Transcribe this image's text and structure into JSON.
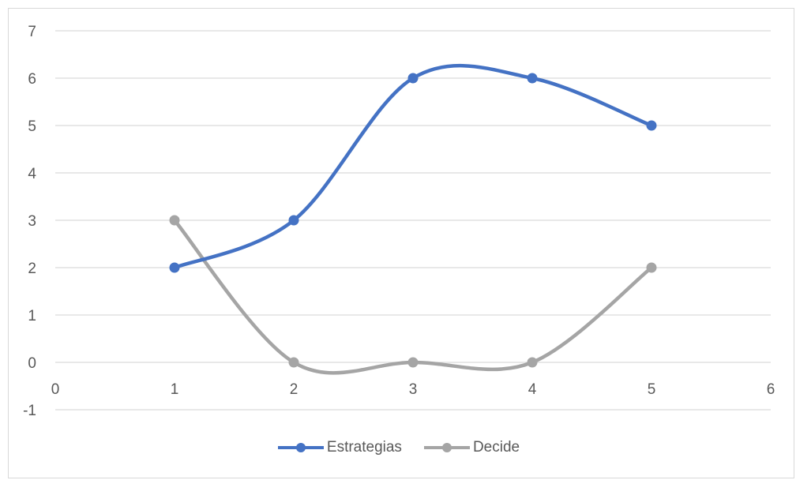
{
  "chart_data": {
    "type": "line",
    "smooth": true,
    "x_ticks": [
      0,
      1,
      2,
      3,
      4,
      5,
      6
    ],
    "y_ticks": [
      -1,
      0,
      1,
      2,
      3,
      4,
      5,
      6,
      7
    ],
    "xlim": [
      0,
      6
    ],
    "ylim": [
      -1,
      7
    ],
    "grid": "horizontal",
    "legend_position": "bottom",
    "series": [
      {
        "name": "Estrategias",
        "color": "#4472c4",
        "x": [
          1,
          2,
          3,
          4,
          5
        ],
        "values": [
          2,
          3,
          6,
          6,
          5
        ]
      },
      {
        "name": "Decide",
        "color": "#a5a5a5",
        "x": [
          1,
          2,
          3,
          4,
          5
        ],
        "values": [
          3,
          0,
          0,
          0,
          2
        ]
      }
    ]
  }
}
